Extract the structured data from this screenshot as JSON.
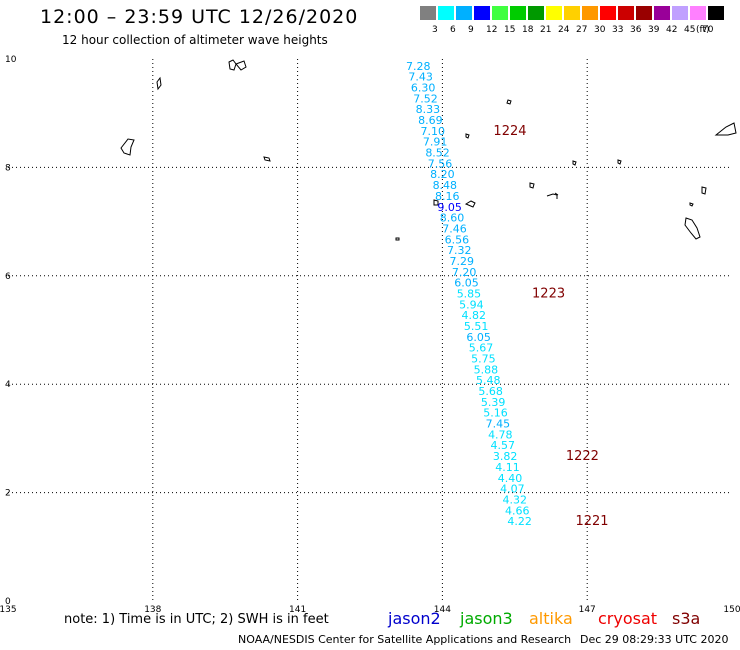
{
  "header": {
    "title": "12:00 – 23:59 UTC 12/26/2020",
    "subtitle": "12 hour collection of altimeter wave heights"
  },
  "legend": {
    "unit": "(ft)",
    "items": [
      {
        "label": "3",
        "color": "#808080"
      },
      {
        "label": "6",
        "color": "#00ffff"
      },
      {
        "label": "9",
        "color": "#00b0ff"
      },
      {
        "label": "12",
        "color": "#0000ff"
      },
      {
        "label": "15",
        "color": "#40ff40"
      },
      {
        "label": "18",
        "color": "#00cc00"
      },
      {
        "label": "21",
        "color": "#009900"
      },
      {
        "label": "24",
        "color": "#ffff00"
      },
      {
        "label": "27",
        "color": "#ffd000"
      },
      {
        "label": "30",
        "color": "#ff9900"
      },
      {
        "label": "33",
        "color": "#ff0000"
      },
      {
        "label": "36",
        "color": "#cc0000"
      },
      {
        "label": "39",
        "color": "#990000"
      },
      {
        "label": "42",
        "color": "#990099"
      },
      {
        "label": "45",
        "color": "#c0a0ff"
      },
      {
        "label": "70",
        "color": "#ff80ff"
      },
      {
        "label": "",
        "color": "#000000"
      }
    ]
  },
  "map": {
    "lon_range": [
      135,
      150
    ],
    "lat_range": [
      0,
      10
    ],
    "lon_ticks": [
      "135",
      "138",
      "141",
      "144",
      "147",
      "150"
    ],
    "lat_ticks": [
      "0",
      "2",
      "4",
      "6",
      "8",
      "10"
    ],
    "grid": "dotted",
    "colors": {
      "sample_light": "#00b0ff",
      "sample_cyan": "#00e0ff",
      "sample_dark": "#0000ff",
      "time_label": "#800000"
    },
    "track": [
      {
        "lon": 143.5,
        "lat": 9.8,
        "value": "7.28"
      },
      {
        "lon": 143.55,
        "lat": 9.6,
        "value": "7.43"
      },
      {
        "lon": 143.6,
        "lat": 9.4,
        "value": "6.30"
      },
      {
        "lon": 143.65,
        "lat": 9.2,
        "value": "7.52"
      },
      {
        "lon": 143.7,
        "lat": 9.0,
        "value": "8.33"
      },
      {
        "lon": 143.75,
        "lat": 8.8,
        "value": "8.69"
      },
      {
        "lon": 143.8,
        "lat": 8.6,
        "value": "7.10"
      },
      {
        "lon": 143.85,
        "lat": 8.4,
        "value": "7.91"
      },
      {
        "lon": 143.9,
        "lat": 8.2,
        "value": "8.52"
      },
      {
        "lon": 143.95,
        "lat": 8.0,
        "value": "7.56"
      },
      {
        "lon": 144.0,
        "lat": 7.8,
        "value": "8.20"
      },
      {
        "lon": 144.05,
        "lat": 7.6,
        "value": "8.48"
      },
      {
        "lon": 144.1,
        "lat": 7.4,
        "value": "8.16"
      },
      {
        "lon": 144.15,
        "lat": 7.2,
        "value": "9.05",
        "dark": true
      },
      {
        "lon": 144.2,
        "lat": 7.0,
        "value": "8.60"
      },
      {
        "lon": 144.25,
        "lat": 6.8,
        "value": "7.46"
      },
      {
        "lon": 144.3,
        "lat": 6.6,
        "value": "6.56"
      },
      {
        "lon": 144.35,
        "lat": 6.4,
        "value": "7.32"
      },
      {
        "lon": 144.4,
        "lat": 6.2,
        "value": "7.29"
      },
      {
        "lon": 144.45,
        "lat": 6.0,
        "value": "7.20"
      },
      {
        "lon": 144.5,
        "lat": 5.8,
        "value": "6.05"
      },
      {
        "lon": 144.55,
        "lat": 5.6,
        "value": "5.85"
      },
      {
        "lon": 144.6,
        "lat": 5.4,
        "value": "5.94"
      },
      {
        "lon": 144.65,
        "lat": 5.2,
        "value": "4.82"
      },
      {
        "lon": 144.7,
        "lat": 5.0,
        "value": "5.51"
      },
      {
        "lon": 144.75,
        "lat": 4.8,
        "value": "6.05"
      },
      {
        "lon": 144.8,
        "lat": 4.6,
        "value": "5.67"
      },
      {
        "lon": 144.85,
        "lat": 4.4,
        "value": "5.75"
      },
      {
        "lon": 144.9,
        "lat": 4.2,
        "value": "5.88"
      },
      {
        "lon": 144.95,
        "lat": 4.0,
        "value": "5.48"
      },
      {
        "lon": 145.0,
        "lat": 3.8,
        "value": "5.68"
      },
      {
        "lon": 145.05,
        "lat": 3.6,
        "value": "5.39"
      },
      {
        "lon": 145.1,
        "lat": 3.4,
        "value": "5.16"
      },
      {
        "lon": 145.15,
        "lat": 3.2,
        "value": "7.45"
      },
      {
        "lon": 145.2,
        "lat": 3.0,
        "value": "4.78"
      },
      {
        "lon": 145.25,
        "lat": 2.8,
        "value": "4.57"
      },
      {
        "lon": 145.3,
        "lat": 2.6,
        "value": "3.82"
      },
      {
        "lon": 145.35,
        "lat": 2.4,
        "value": "4.11"
      },
      {
        "lon": 145.4,
        "lat": 2.2,
        "value": "4.40"
      },
      {
        "lon": 145.45,
        "lat": 2.0,
        "value": "4.07"
      },
      {
        "lon": 145.5,
        "lat": 1.8,
        "value": "4.32"
      },
      {
        "lon": 145.55,
        "lat": 1.6,
        "value": "4.66"
      },
      {
        "lon": 145.6,
        "lat": 1.4,
        "value": "4.22"
      }
    ],
    "time_labels": [
      {
        "text": "1224",
        "lon": 145.4,
        "lat": 8.6
      },
      {
        "text": "1223",
        "lon": 146.2,
        "lat": 5.6
      },
      {
        "text": "1222",
        "lon": 146.9,
        "lat": 2.6
      },
      {
        "text": "1221",
        "lon": 147.1,
        "lat": 1.4
      }
    ]
  },
  "footer": {
    "note": "note:  1) Time is in UTC;  2) SWH is in feet",
    "missions": [
      {
        "name": "jason2",
        "color": "#0000cc"
      },
      {
        "name": "jason3",
        "color": "#00aa00"
      },
      {
        "name": "altika",
        "color": "#ff9900"
      },
      {
        "name": "cryosat",
        "color": "#ee0000"
      },
      {
        "name": "s3a",
        "color": "#800000"
      }
    ],
    "credit": "NOAA/NESDIS Center for Satellite Applications and Research",
    "generated": "Dec 29 08:29:33 UTC 2020"
  }
}
